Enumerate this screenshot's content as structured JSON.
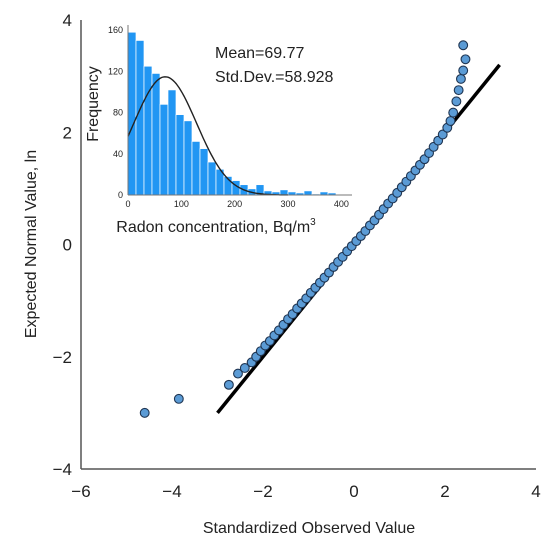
{
  "chart_data": [
    {
      "type": "scatter",
      "title": "",
      "xlabel": "Standardized Observed Value",
      "ylabel": "Expected Normal Value, ln",
      "xlim": [
        -6,
        4
      ],
      "ylim": [
        -4,
        4
      ],
      "xticks": [
        "−6",
        "−4",
        "−2",
        "0",
        "2",
        "4"
      ],
      "yticks": [
        "4",
        "2",
        "0",
        "−2",
        "−4"
      ],
      "grid": false,
      "reference_line": {
        "x": [
          -3.0,
          3.2
        ],
        "y": [
          -3.0,
          3.2
        ]
      },
      "series": [
        {
          "points": [
            [
              -4.6,
              -3.0
            ],
            [
              -3.85,
              -2.75
            ],
            [
              -2.75,
              -2.5
            ],
            [
              -2.55,
              -2.3
            ],
            [
              -2.4,
              -2.2
            ],
            [
              -2.25,
              -2.1
            ],
            [
              -2.15,
              -2.0
            ],
            [
              -2.05,
              -1.9
            ],
            [
              -1.95,
              -1.8
            ],
            [
              -1.85,
              -1.72
            ],
            [
              -1.75,
              -1.62
            ],
            [
              -1.65,
              -1.53
            ],
            [
              -1.55,
              -1.43
            ],
            [
              -1.45,
              -1.33
            ],
            [
              -1.35,
              -1.24
            ],
            [
              -1.25,
              -1.14
            ],
            [
              -1.15,
              -1.05
            ],
            [
              -1.05,
              -0.96
            ],
            [
              -0.95,
              -0.86
            ],
            [
              -0.85,
              -0.77
            ],
            [
              -0.75,
              -0.68
            ],
            [
              -0.65,
              -0.59
            ],
            [
              -0.55,
              -0.5
            ],
            [
              -0.45,
              -0.4
            ],
            [
              -0.35,
              -0.31
            ],
            [
              -0.25,
              -0.22
            ],
            [
              -0.15,
              -0.12
            ],
            [
              -0.05,
              -0.03
            ],
            [
              0.05,
              0.06
            ],
            [
              0.15,
              0.15
            ],
            [
              0.25,
              0.24
            ],
            [
              0.35,
              0.34
            ],
            [
              0.45,
              0.43
            ],
            [
              0.55,
              0.53
            ],
            [
              0.65,
              0.63
            ],
            [
              0.75,
              0.73
            ],
            [
              0.85,
              0.82
            ],
            [
              0.95,
              0.92
            ],
            [
              1.05,
              1.02
            ],
            [
              1.15,
              1.12
            ],
            [
              1.25,
              1.22
            ],
            [
              1.35,
              1.32
            ],
            [
              1.45,
              1.42
            ],
            [
              1.55,
              1.52
            ],
            [
              1.65,
              1.63
            ],
            [
              1.75,
              1.74
            ],
            [
              1.85,
              1.85
            ],
            [
              1.95,
              1.96
            ],
            [
              2.05,
              2.08
            ],
            [
              2.12,
              2.2
            ],
            [
              2.18,
              2.35
            ],
            [
              2.25,
              2.55
            ],
            [
              2.3,
              2.75
            ],
            [
              2.35,
              2.95
            ],
            [
              2.4,
              3.1
            ],
            [
              2.45,
              3.3
            ],
            [
              2.4,
              3.55
            ]
          ]
        }
      ]
    },
    {
      "type": "bar",
      "title": "",
      "xlabel": "Radon concentration, Bq/m",
      "xlabel_superscript": "3",
      "ylabel": "Frequency",
      "xlim": [
        0,
        420
      ],
      "ylim": [
        0,
        165
      ],
      "xticks": [
        "0",
        "100",
        "200",
        "300",
        "400"
      ],
      "yticks": [
        "0",
        "40",
        "80",
        "120",
        "160"
      ],
      "bin_width": 15,
      "bin_starts": [
        0,
        15,
        30,
        45,
        60,
        75,
        90,
        105,
        120,
        135,
        150,
        165,
        180,
        195,
        210,
        225,
        240,
        255,
        270,
        285,
        300,
        315,
        330,
        345,
        360,
        375
      ],
      "values": [
        158,
        150,
        125,
        118,
        88,
        102,
        78,
        72,
        52,
        45,
        32,
        25,
        18,
        14,
        10,
        6,
        10,
        4,
        3,
        5,
        3,
        2,
        4,
        1,
        3,
        2
      ],
      "normal_curve": {
        "mean": 69.77,
        "sd": 58.928
      },
      "annotations": [
        "Mean=69.77",
        "Std.Dev.=58.928"
      ]
    }
  ]
}
